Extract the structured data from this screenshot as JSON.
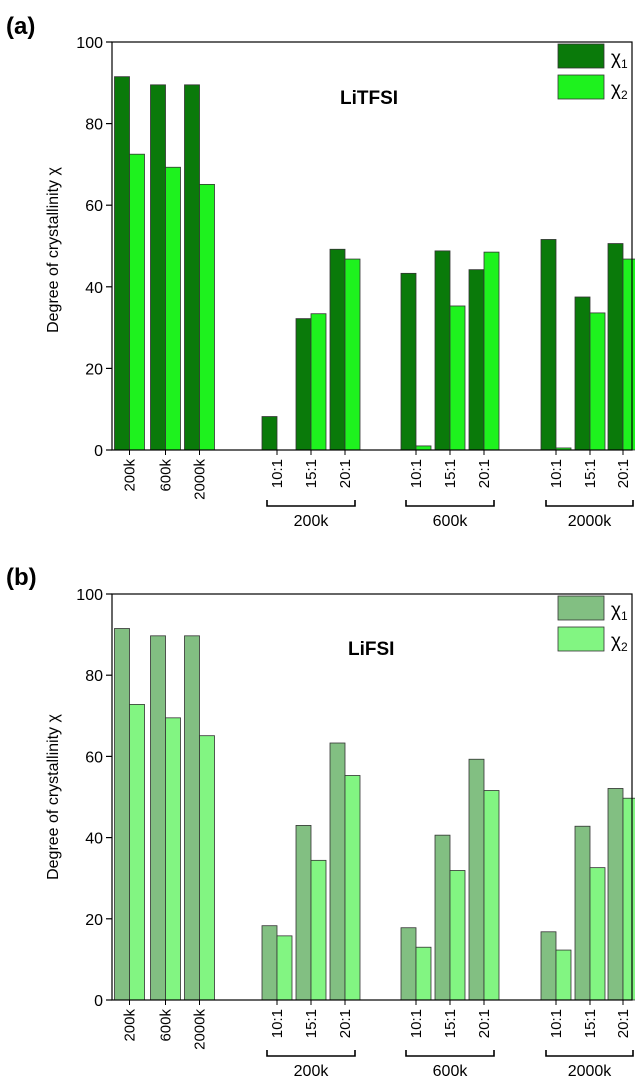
{
  "chart_data": [
    {
      "panel_label": "(a)",
      "type": "bar",
      "title": "LiTFSI",
      "ylabel": "Degree of crystallinity χ",
      "ylim": [
        0,
        100
      ],
      "yticks": [
        "0",
        "20",
        "40",
        "60",
        "80",
        "100"
      ],
      "legend_position": "top-right",
      "categories": [
        "200k",
        "600k",
        "2000k",
        "10:1",
        "15:1",
        "20:1",
        "10:1",
        "15:1",
        "20:1",
        "10:1",
        "15:1",
        "20:1"
      ],
      "groups": [
        "200k",
        "600k",
        "2000k"
      ],
      "series": [
        {
          "name": "χ",
          "subscript": "1",
          "color": "#0a7a0a",
          "values": [
            91.5,
            89.5,
            89.5,
            8.2,
            32.2,
            49.2,
            43.3,
            48.8,
            44.2,
            51.6,
            37.5,
            50.6
          ]
        },
        {
          "name": "χ",
          "subscript": "2",
          "color": "#1ef21e",
          "values": [
            72.5,
            69.3,
            65.1,
            0,
            33.4,
            46.8,
            1.0,
            35.3,
            48.5,
            0.5,
            33.6,
            46.8
          ]
        }
      ]
    },
    {
      "panel_label": "(b)",
      "type": "bar",
      "title": "LiFSI",
      "ylabel": "Degree of crystallinity χ",
      "ylim": [
        0,
        100
      ],
      "yticks": [
        "0",
        "20",
        "40",
        "60",
        "80",
        "100"
      ],
      "legend_position": "top-right",
      "categories": [
        "200k",
        "600k",
        "2000k",
        "10:1",
        "15:1",
        "20:1",
        "10:1",
        "15:1",
        "20:1",
        "10:1",
        "15:1",
        "20:1"
      ],
      "groups": [
        "200k",
        "600k",
        "2000k"
      ],
      "series": [
        {
          "name": "χ",
          "subscript": "1",
          "color": "#82bf82",
          "values": [
            91.5,
            89.7,
            89.7,
            18.3,
            43.0,
            63.3,
            17.8,
            40.6,
            59.3,
            16.8,
            42.8,
            52.1
          ]
        },
        {
          "name": "χ",
          "subscript": "2",
          "color": "#82f582",
          "values": [
            72.8,
            69.5,
            65.1,
            15.8,
            34.4,
            55.3,
            13.0,
            31.9,
            51.6,
            12.3,
            32.6,
            49.7
          ]
        }
      ]
    }
  ]
}
